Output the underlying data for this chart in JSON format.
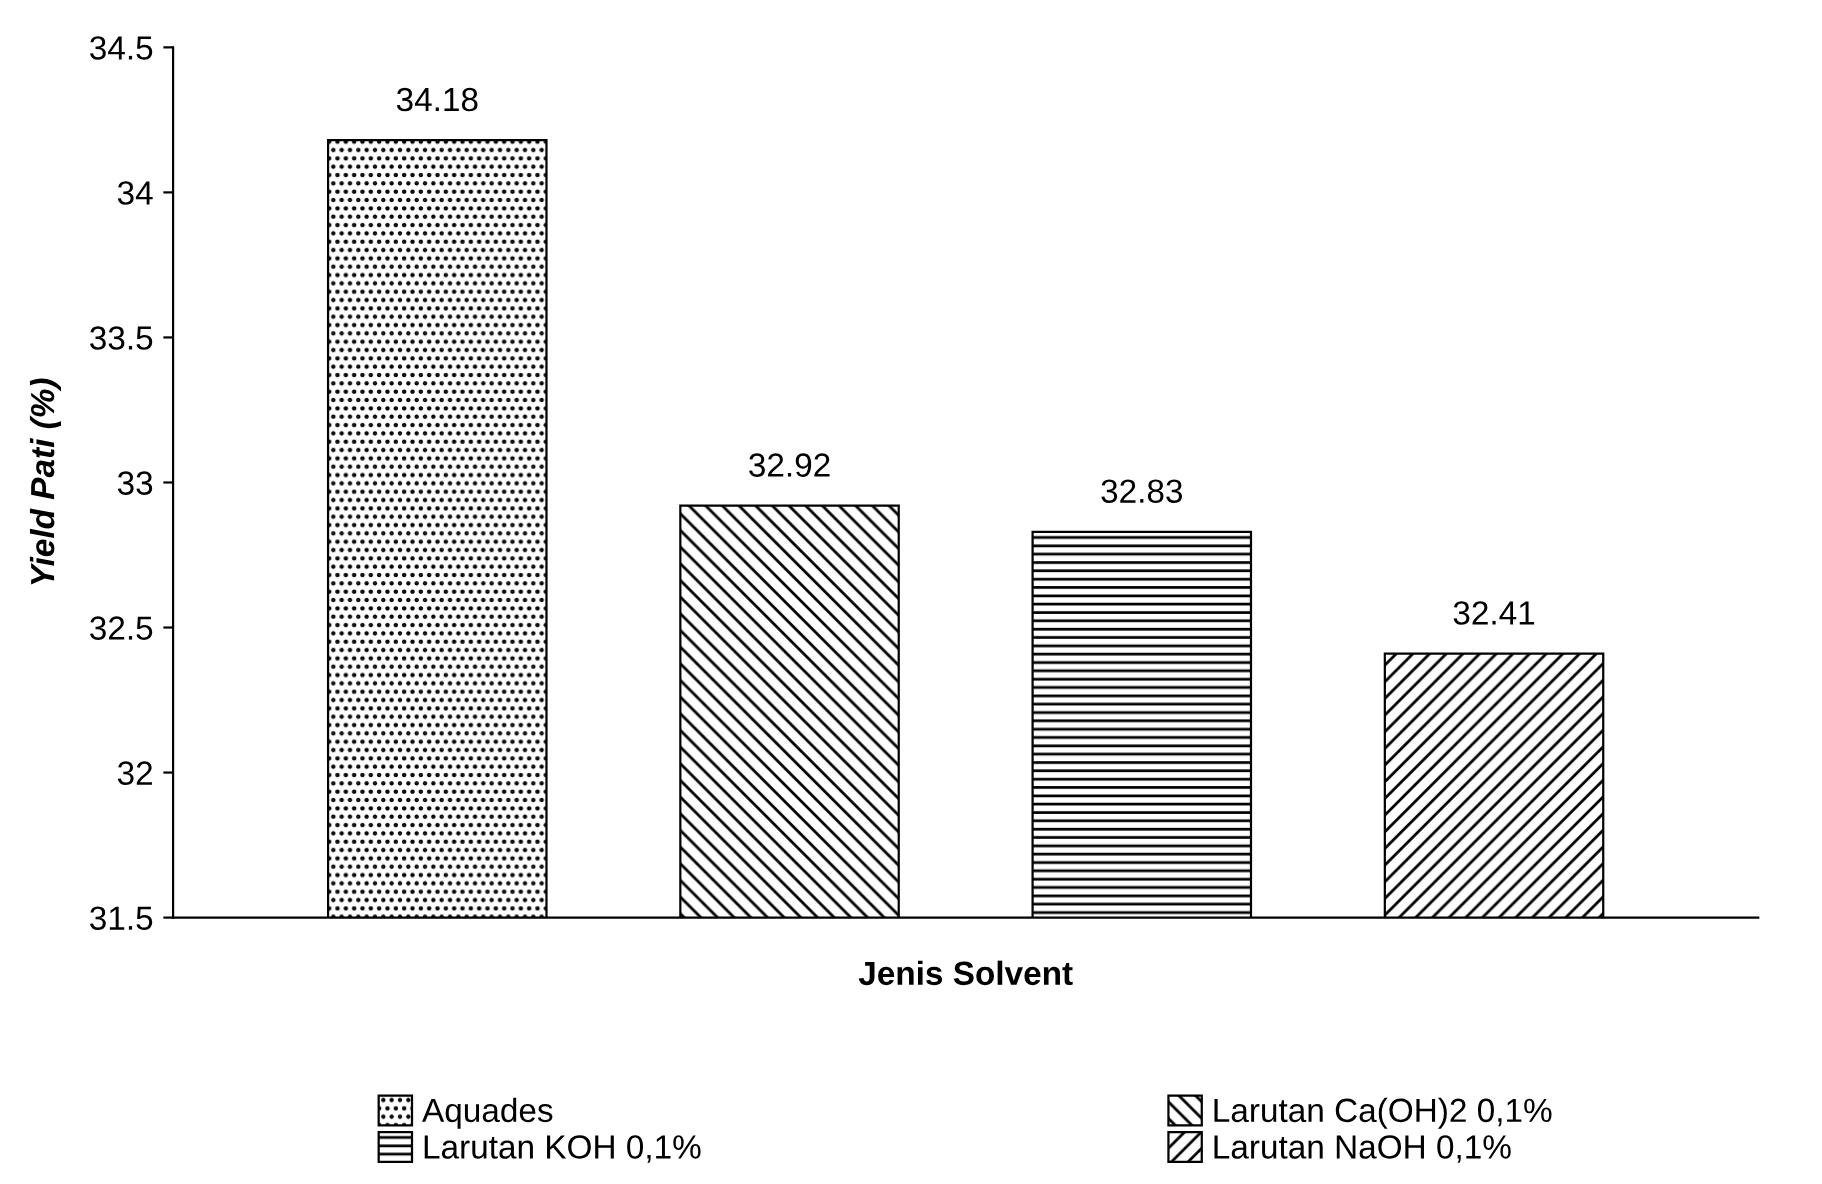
{
  "chart_data": {
    "type": "bar",
    "xlabel": "Jenis Solvent",
    "ylabel": "Yield Pati (%)",
    "categories": [
      null,
      null,
      null,
      null
    ],
    "series": [
      {
        "name": "Aquades",
        "color": "#000000",
        "values": [
          34.18,
          null,
          null,
          null
        ]
      },
      {
        "name": "Larutan Ca(OH)2 0,1%",
        "color": "#000000",
        "values": [
          null,
          32.92,
          null,
          null
        ]
      },
      {
        "name": "Larutan KOH 0,1%",
        "color": "#000000",
        "values": [
          null,
          null,
          32.83,
          null
        ]
      },
      {
        "name": "Larutan NaOH 0,1%",
        "color": "#000000",
        "values": [
          null,
          null,
          null,
          32.41
        ]
      }
    ],
    "ylim": [
      31.5,
      34.5
    ],
    "yticks": [
      31.5,
      32,
      32.5,
      33,
      33.5,
      34,
      34.5
    ],
    "data_labels": true,
    "grid": false,
    "legend": "bottom"
  }
}
